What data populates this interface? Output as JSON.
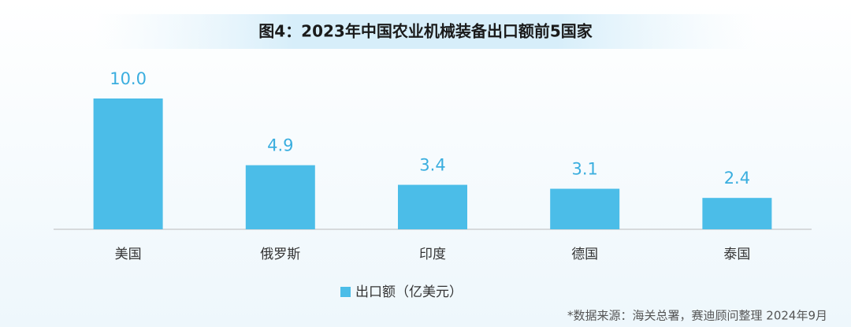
{
  "chart_data": {
    "type": "bar",
    "title": "图4：2023年中国农业机械装备出口额前5国家",
    "categories": [
      "美国",
      "俄罗斯",
      "印度",
      "德国",
      "泰国"
    ],
    "series": [
      {
        "name": "出口额（亿美元）",
        "color": "#4bbde8",
        "values": [
          10,
          4.9,
          3.4,
          3.1,
          2.4
        ],
        "value_labels": [
          "10.0",
          "4.9",
          "3.4",
          "3.1",
          "2.4"
        ]
      }
    ],
    "source": "*数据来源：海关总署，赛迪顾问整理 2024年9月"
  }
}
